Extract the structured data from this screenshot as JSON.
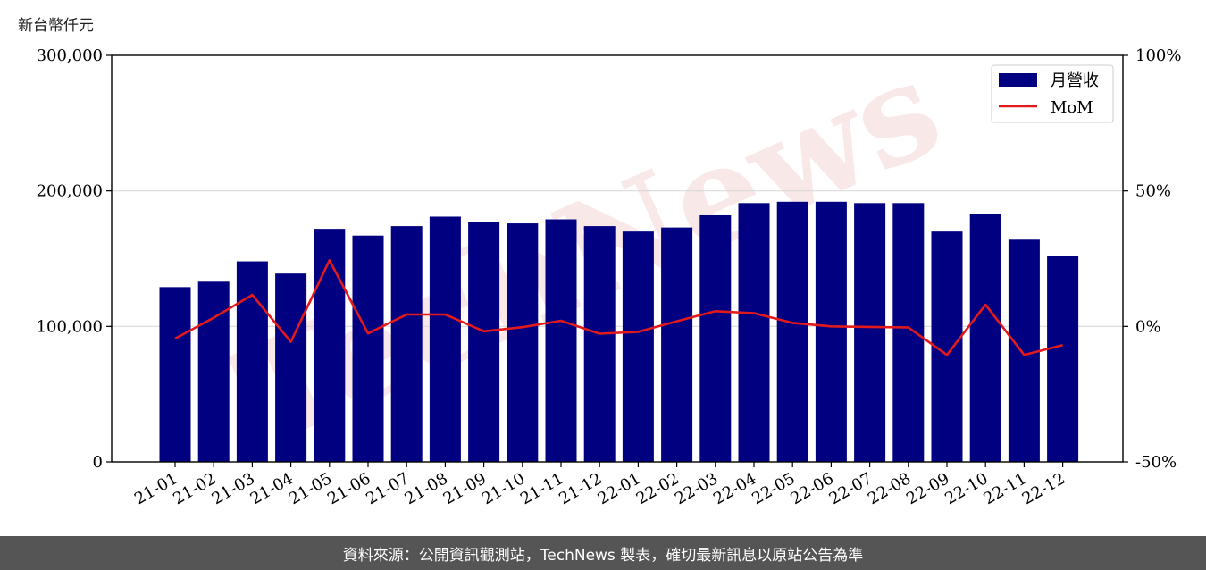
{
  "chart_data": {
    "type": "bar",
    "categories": [
      "21-01",
      "21-02",
      "21-03",
      "21-04",
      "21-05",
      "21-06",
      "21-07",
      "21-08",
      "21-09",
      "21-10",
      "21-11",
      "21-12",
      "22-01",
      "22-02",
      "22-03",
      "22-04",
      "22-05",
      "22-06",
      "22-07",
      "22-08",
      "22-09",
      "22-10",
      "22-11",
      "22-12"
    ],
    "series": [
      {
        "name": "月營收",
        "type": "bar",
        "axis": "left",
        "color": "#000080",
        "values": [
          129000,
          133000,
          148000,
          139000,
          172000,
          167000,
          174000,
          181000,
          177000,
          176000,
          179000,
          174000,
          170000,
          173000,
          182000,
          191000,
          192000,
          192000,
          191000,
          191000,
          170000,
          183000,
          164000,
          152000
        ]
      },
      {
        "name": "MoM",
        "type": "line",
        "axis": "right",
        "color": "#e31a1c",
        "values": [
          -4.5,
          3.2,
          11.6,
          -5.7,
          24.4,
          -2.6,
          4.4,
          4.4,
          -1.8,
          -0.3,
          2.1,
          -2.7,
          -2.0,
          1.9,
          5.6,
          4.9,
          1.3,
          0.0,
          -0.2,
          -0.4,
          -10.5,
          8.0,
          -10.5,
          -6.9
        ]
      }
    ],
    "ylabel": "新台幣仟元",
    "ylim": [
      0,
      300000
    ],
    "yticks": [
      "0",
      "100,000",
      "200,000",
      "300,000"
    ],
    "y2lim": [
      -50,
      100
    ],
    "y2ticks": [
      "-50%",
      "0%",
      "50%",
      "100%"
    ],
    "grid": "horizontal",
    "legend": "top-right",
    "watermark": "TechNews"
  },
  "footer": {
    "source": "資料來源：公開資訊觀測站，TechNews 製表，確切最新訊息以原站公告為準"
  }
}
